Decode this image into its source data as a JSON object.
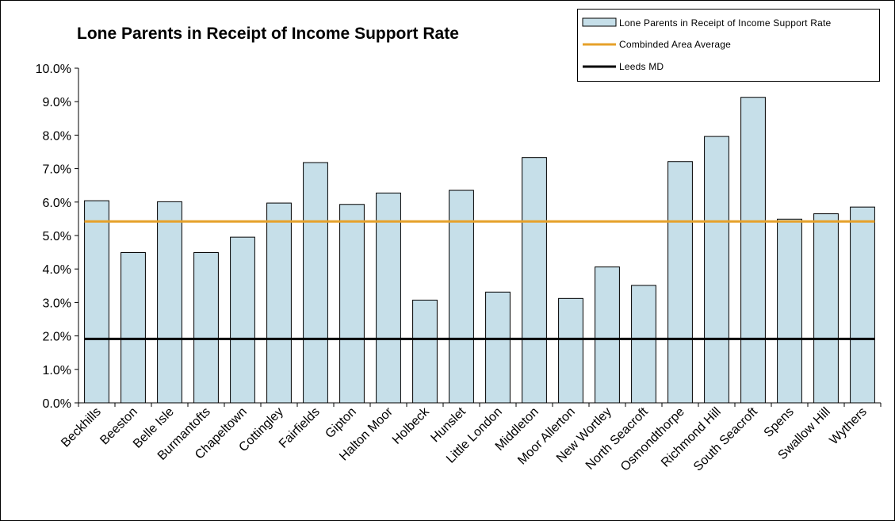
{
  "chart_data": {
    "type": "bar",
    "title": "Lone Parents in Receipt of Income Support Rate",
    "xlabel": "",
    "ylabel": "",
    "ylim": [
      0,
      0.1
    ],
    "y_ticks": [
      "0.0%",
      "1.0%",
      "2.0%",
      "3.0%",
      "4.0%",
      "5.0%",
      "6.0%",
      "7.0%",
      "8.0%",
      "9.0%",
      "10.0%"
    ],
    "y_tick_values": [
      0,
      0.01,
      0.02,
      0.03,
      0.04,
      0.05,
      0.06,
      0.07,
      0.08,
      0.09,
      0.1
    ],
    "categories": [
      "Beckhills",
      "Beeston",
      "Belle Isle",
      "Burmantofts",
      "Chapeltown",
      "Cottingley",
      "Fairfields",
      "Gipton",
      "Halton Moor",
      "Holbeck",
      "Hunslet",
      "Little London",
      "Middleton",
      "Moor Allerton",
      "New Wortley",
      "North Seacroft",
      "Osmondthorpe",
      "Richmond Hill",
      "South Seacroft",
      "Spens",
      "Swallow Hill",
      "Wythers"
    ],
    "series": [
      {
        "name": "Lone Parents in Receipt of Income Support Rate",
        "kind": "bar",
        "color": "#c6dfe9",
        "values": [
          0.0604,
          0.0449,
          0.0601,
          0.0449,
          0.0495,
          0.0597,
          0.0718,
          0.0593,
          0.0627,
          0.0307,
          0.0635,
          0.0331,
          0.0733,
          0.0312,
          0.0406,
          0.0351,
          0.0721,
          0.0796,
          0.0913,
          0.0549,
          0.0565,
          0.0585
        ]
      },
      {
        "name": "Combinded Area Average",
        "kind": "line",
        "color": "#e6a12a",
        "value": 0.0542
      },
      {
        "name": "Leeds MD",
        "kind": "line",
        "color": "#000000",
        "value": 0.0191
      }
    ],
    "grid": false,
    "legend_position": "top-right"
  }
}
